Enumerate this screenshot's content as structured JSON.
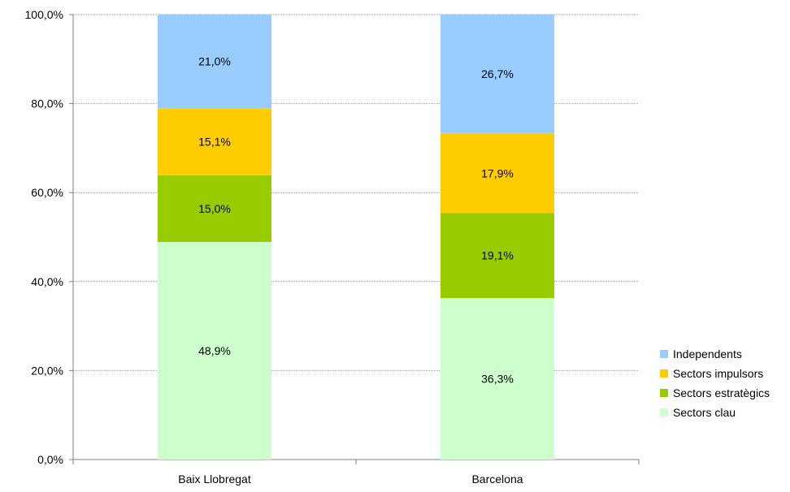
{
  "chart_data": {
    "type": "bar",
    "stacked": true,
    "categories": [
      "Baix Llobregat",
      "Barcelona"
    ],
    "series": [
      {
        "name": "Sectors clau",
        "values": [
          48.9,
          36.3
        ],
        "labels": [
          "48,9%",
          "36,3%"
        ],
        "color": "#ccffcc"
      },
      {
        "name": "Sectors estratègics",
        "values": [
          15.0,
          19.1
        ],
        "labels": [
          "15,0%",
          "19,1%"
        ],
        "color": "#99cc00"
      },
      {
        "name": "Sectors impulsors",
        "values": [
          15.1,
          17.9
        ],
        "labels": [
          "15,1%",
          "17,9%"
        ],
        "color": "#ffcc00"
      },
      {
        "name": "Independents",
        "values": [
          21.0,
          26.7
        ],
        "labels": [
          "21,0%",
          "26,7%"
        ],
        "color": "#99ccff"
      }
    ],
    "ylim": [
      0,
      100
    ],
    "yticks": [
      0,
      20,
      40,
      60,
      80,
      100
    ],
    "ytick_labels": [
      "0,0%",
      "20,0%",
      "40,0%",
      "60,0%",
      "80,0%",
      "100,0%"
    ],
    "grid": true,
    "legend_position": "right"
  }
}
